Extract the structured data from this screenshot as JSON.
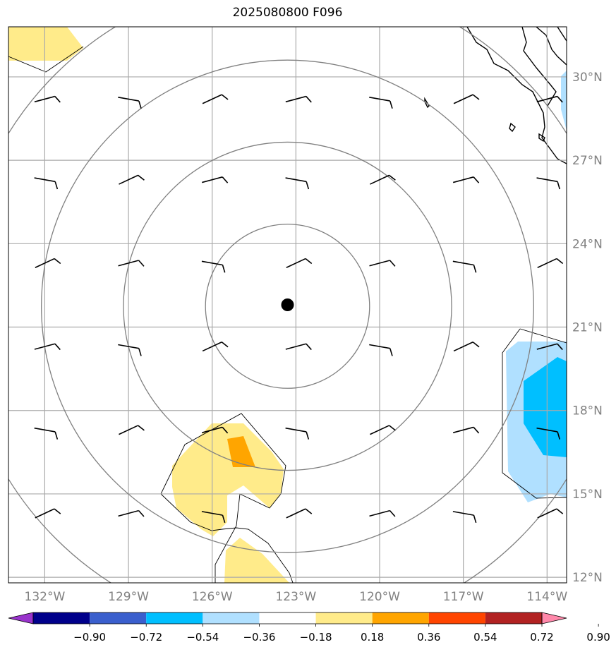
{
  "title": "2025080800 F096",
  "map": {
    "lon_ticks": [
      {
        "value": -132,
        "label": "132°W"
      },
      {
        "value": -129,
        "label": "129°W"
      },
      {
        "value": -126,
        "label": "126°W"
      },
      {
        "value": -123,
        "label": "123°W"
      },
      {
        "value": -120,
        "label": "120°W"
      },
      {
        "value": -117,
        "label": "117°W"
      },
      {
        "value": -114,
        "label": "114°W"
      }
    ],
    "lat_ticks": [
      {
        "value": 30,
        "label": "30°N"
      },
      {
        "value": 27,
        "label": "27°N"
      },
      {
        "value": 24,
        "label": "24°N"
      },
      {
        "value": 21,
        "label": "21°N"
      },
      {
        "value": 18,
        "label": "18°N"
      },
      {
        "value": 15,
        "label": "15°N"
      },
      {
        "value": 12,
        "label": "12°N"
      }
    ],
    "extent": {
      "lon_min": -133.3,
      "lon_max": -113.3,
      "lat_min": 11.8,
      "lat_max": 31.8
    },
    "center_marker": {
      "lon": -123.3,
      "lat": 21.8
    },
    "range_rings_deg": [
      3,
      6,
      9,
      12
    ],
    "colors": {
      "grid": "#aaaaaa",
      "ring": "#808080",
      "coast": "#000000"
    }
  },
  "colorbar": {
    "labels": [
      "−0.90",
      "−0.72",
      "−0.54",
      "−0.36",
      "−0.18",
      "0.18",
      "0.36",
      "0.54",
      "0.72",
      "0.90"
    ],
    "colors": [
      "#9933cc",
      "#00008b",
      "#3a5fcd",
      "#00bfff",
      "#b0e0ff",
      "#ffffff",
      "#ffeb8a",
      "#ffa500",
      "#ff4500",
      "#b22222",
      "#ff88aa"
    ]
  }
}
